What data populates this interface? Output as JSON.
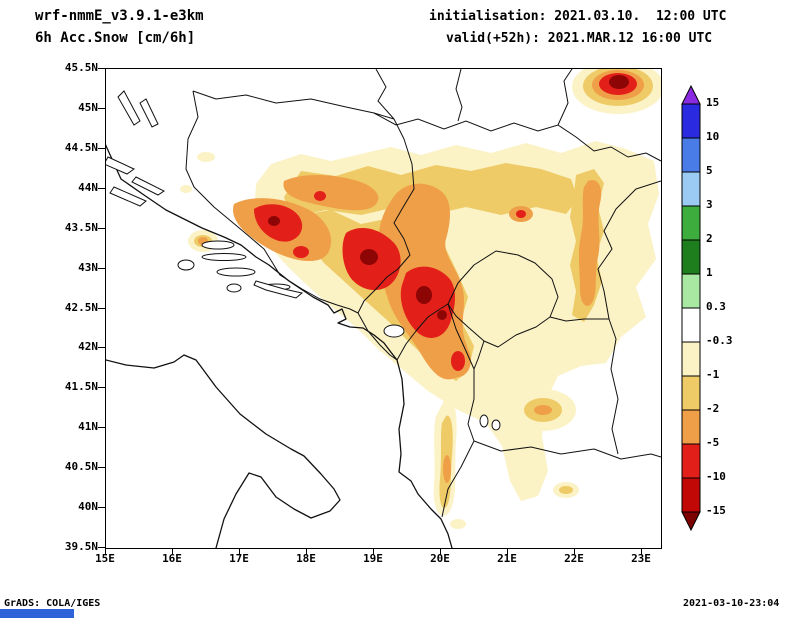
{
  "header": {
    "model_line": "wrf-nmmE_v3.9.1-e3km",
    "field_line": "6h Acc.Snow [cm/6h]",
    "init_line": "initialisation: 2021.03.10.  12:00 UTC",
    "valid_line": "valid(+52h): 2021.MAR.12 16:00 UTC"
  },
  "map": {
    "lat_ticks": [
      "45.5N",
      "45N",
      "44.5N",
      "44N",
      "43.5N",
      "43N",
      "42.5N",
      "42N",
      "41.5N",
      "41N",
      "40.5N",
      "40N",
      "39.5N"
    ],
    "lon_ticks": [
      "15E",
      "16E",
      "17E",
      "18E",
      "19E",
      "20E",
      "21E",
      "22E",
      "23E"
    ],
    "line_color": "#111111",
    "fill_levels": {
      "l1": "#FBF2C6",
      "l2": "#EECB66",
      "l3": "#EF9F48",
      "l4": "#E31F1A",
      "l5": "#8E0505"
    }
  },
  "colorbar": {
    "tick_labels": [
      "15",
      "10",
      "5",
      "3",
      "2",
      "1",
      "0.3",
      "-0.3",
      "-1",
      "-2",
      "-5",
      "-10",
      "-15"
    ],
    "colors": {
      "above": "#8A2BE2",
      "segments": [
        "#2A2AE0",
        "#4A7CE8",
        "#9BCBF2",
        "#3DAE3D",
        "#1E7E1E",
        "#A9E8A2",
        "#FFFFFF",
        "#FBF2C6",
        "#EECB66",
        "#EF9F48",
        "#E31F1A",
        "#C20707"
      ],
      "below": "#7C0202"
    }
  },
  "footer": {
    "credit": "GrADS: COLA/IGES",
    "timestamp": "2021-03-10-23:04"
  },
  "artifacts": {
    "bottom_bar_color": "#2E62D9"
  }
}
